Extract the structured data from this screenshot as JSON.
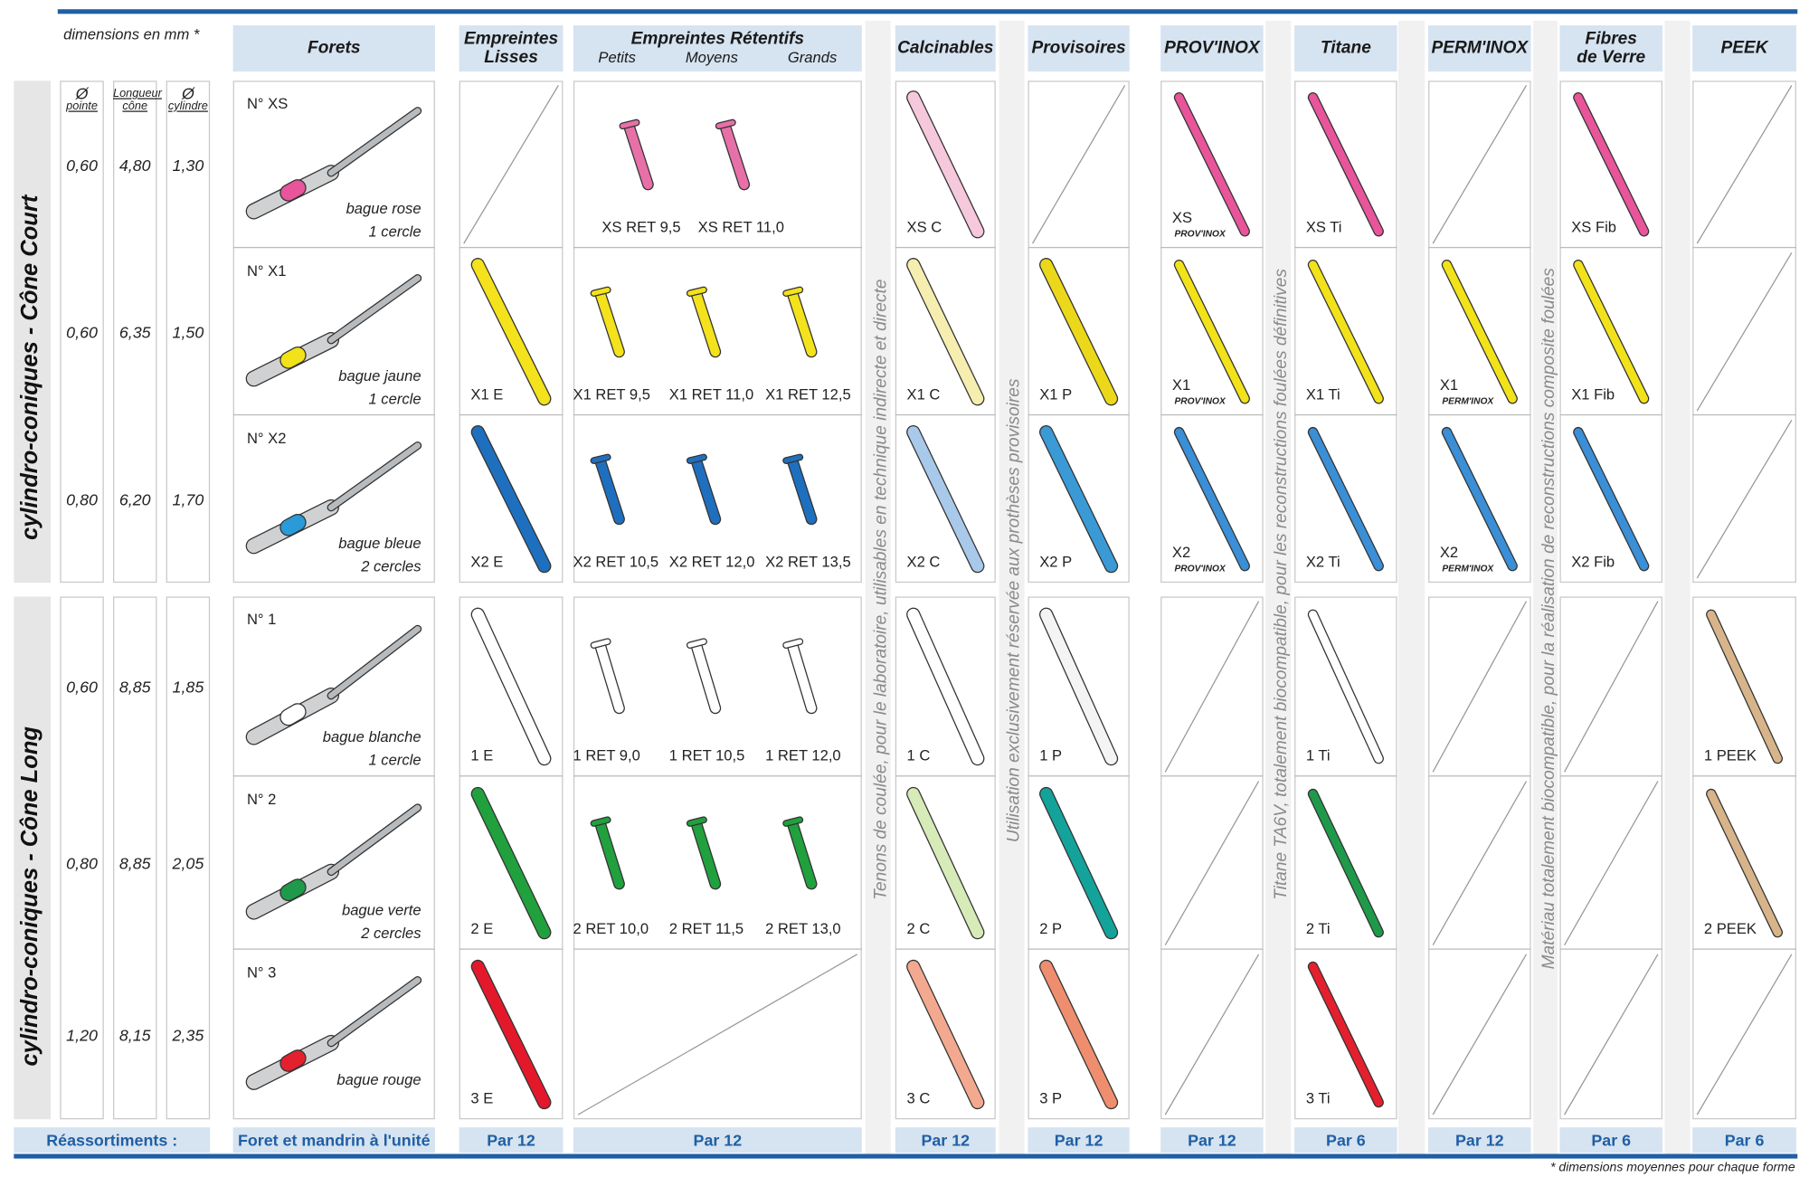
{
  "header": {
    "dims_note": "dimensions en mm *",
    "dim_cols": [
      {
        "sym": "Ø",
        "label": "pointe"
      },
      {
        "sym": "",
        "label": "Longueur cône"
      },
      {
        "sym": "Ø",
        "label": "cylindre"
      }
    ],
    "forets": "Forets",
    "lisses": "Empreintes Lisses",
    "retentifs": "Empreintes Rétentifs",
    "retentifs_sizes": [
      "Petits",
      "Moyens",
      "Grands"
    ],
    "calcinables": "Calcinables",
    "provisoires": "Provisoires",
    "provinox": "PROV'INOX",
    "titane": "Titane",
    "perminox": "PERM'INOX",
    "fibres": "Fibres de Verre",
    "peek": "PEEK"
  },
  "groups": [
    "cylindro-coniques - Cône Court",
    "cylindro-coniques - Cône Long"
  ],
  "dims": [
    [
      "0,60",
      "4,80",
      "1,30"
    ],
    [
      "0,60",
      "6,35",
      "1,50"
    ],
    [
      "0,80",
      "6,20",
      "1,70"
    ],
    [
      "0,60",
      "8,85",
      "1,85"
    ],
    [
      "0,80",
      "8,85",
      "2,05"
    ],
    [
      "1,20",
      "8,15",
      "2,35"
    ]
  ],
  "forets": [
    {
      "no": "N° XS",
      "bague": "bague rose",
      "cercles": "1 cercle",
      "color": "#e8559a"
    },
    {
      "no": "N° X1",
      "bague": "bague jaune",
      "cercles": "1 cercle",
      "color": "#f2e21a"
    },
    {
      "no": "N° X2",
      "bague": "bague bleue",
      "cercles": "2 cercles",
      "color": "#2a9ad8"
    },
    {
      "no": "N° 1",
      "bague": "bague blanche",
      "cercles": "1 cercle",
      "color": "#ffffff"
    },
    {
      "no": "N° 2",
      "bague": "bague verte",
      "cercles": "2 cercles",
      "color": "#1f9a4a"
    },
    {
      "no": "N° 3",
      "bague": "bague rouge",
      "cercles": "",
      "color": "#e4202e"
    }
  ],
  "columns": {
    "lisses": [
      null,
      {
        "label": "X1 E",
        "color": "#f4e21c"
      },
      {
        "label": "X2 E",
        "color": "#1f6fbf"
      },
      {
        "label": "1 E",
        "color": "#ffffff"
      },
      {
        "label": "2 E",
        "color": "#21a03e"
      },
      {
        "label": "3 E",
        "color": "#e3192b"
      }
    ],
    "retentifs": [
      [
        {
          "label": "XS RET 9,5",
          "color": "#e870a8"
        },
        {
          "label": "XS RET 11,0",
          "color": "#e870a8"
        }
      ],
      [
        {
          "label": "X1 RET 9,5",
          "color": "#f4e21c"
        },
        {
          "label": "X1 RET 11,0",
          "color": "#f4e21c"
        },
        {
          "label": "X1 RET 12,5",
          "color": "#f4e21c"
        }
      ],
      [
        {
          "label": "X2 RET 10,5",
          "color": "#1f6fbf"
        },
        {
          "label": "X2 RET 12,0",
          "color": "#1f6fbf"
        },
        {
          "label": "X2 RET 13,5",
          "color": "#1f6fbf"
        }
      ],
      [
        {
          "label": "1 RET 9,0",
          "color": "#ffffff"
        },
        {
          "label": "1 RET 10,5",
          "color": "#ffffff"
        },
        {
          "label": "1 RET 12,0",
          "color": "#ffffff"
        }
      ],
      [
        {
          "label": "2 RET 10,0",
          "color": "#21a03e"
        },
        {
          "label": "2 RET 11,5",
          "color": "#21a03e"
        },
        {
          "label": "2 RET 13,0",
          "color": "#21a03e"
        }
      ],
      null
    ],
    "calcinables": [
      {
        "label": "XS C",
        "color": "#f6c8dc"
      },
      {
        "label": "X1 C",
        "color": "#f5eeb0"
      },
      {
        "label": "X2 C",
        "color": "#a9c9ea"
      },
      {
        "label": "1 C",
        "color": "#ffffff"
      },
      {
        "label": "2 C",
        "color": "#d6ebb8"
      },
      {
        "label": "3 C",
        "color": "#f3a98f"
      }
    ],
    "provisoires": [
      null,
      {
        "label": "X1 P",
        "color": "#ecd81a"
      },
      {
        "label": "X2 P",
        "color": "#3a9ad6"
      },
      {
        "label": "1 P",
        "color": "#f4f4f4"
      },
      {
        "label": "2 P",
        "color": "#14a39a"
      },
      {
        "label": "3 P",
        "color": "#ef8e6e"
      }
    ],
    "provinox": [
      {
        "label": "XS",
        "sub": "PROV'INOX",
        "color": "#e8559a"
      },
      {
        "label": "X1",
        "sub": "PROV'INOX",
        "color": "#f2e21a"
      },
      {
        "label": "X2",
        "sub": "PROV'INOX",
        "color": "#3a8fd6"
      },
      null,
      null,
      null
    ],
    "titane": [
      {
        "label": "XS Ti",
        "color": "#e8559a"
      },
      {
        "label": "X1 Ti",
        "color": "#f2e21a"
      },
      {
        "label": "X2 Ti",
        "color": "#3a8fd6"
      },
      {
        "label": "1 Ti",
        "color": "#ffffff"
      },
      {
        "label": "2 Ti",
        "color": "#1f9a4a"
      },
      {
        "label": "3 Ti",
        "color": "#e4202e"
      }
    ],
    "perminox": [
      null,
      {
        "label": "X1",
        "sub": "PERM'INOX",
        "color": "#f2e21a"
      },
      {
        "label": "X2",
        "sub": "PERM'INOX",
        "color": "#3a8fd6"
      },
      null,
      null,
      null
    ],
    "fibres": [
      {
        "label": "XS Fib",
        "color": "#e8559a"
      },
      {
        "label": "X1 Fib",
        "color": "#f2e21a"
      },
      {
        "label": "X2 Fib",
        "color": "#3a8fd6"
      },
      null,
      null,
      null
    ],
    "peek": [
      null,
      null,
      null,
      {
        "label": "1 PEEK",
        "color": "#d8b48a"
      },
      {
        "label": "2 PEEK",
        "color": "#d8b48a"
      },
      null
    ]
  },
  "vertical_notes": [
    "Tenons de coulée, pour le laboratoire, utilisables en technique indirecte et directe",
    "Utilisation exclusivement réservée aux prothèses provisoires",
    "Titane TA6V, totalement biocompatible, pour les reconstructions foulées définitives",
    "Matériau totalement biocompatible, pour la réalisation de reconstructions composite foulées"
  ],
  "footer": {
    "label": "Réassortiments :",
    "forets": "Foret et mandrin à l'unité",
    "lisses": "Par 12",
    "retentifs": "Par 12",
    "calcinables": "Par 12",
    "provisoires": "Par 12",
    "provinox": "Par 12",
    "titane": "Par 6",
    "perminox": "Par 12",
    "fibres": "Par 6",
    "peek": "Par 6",
    "note": "* dimensions moyennes pour chaque forme"
  }
}
